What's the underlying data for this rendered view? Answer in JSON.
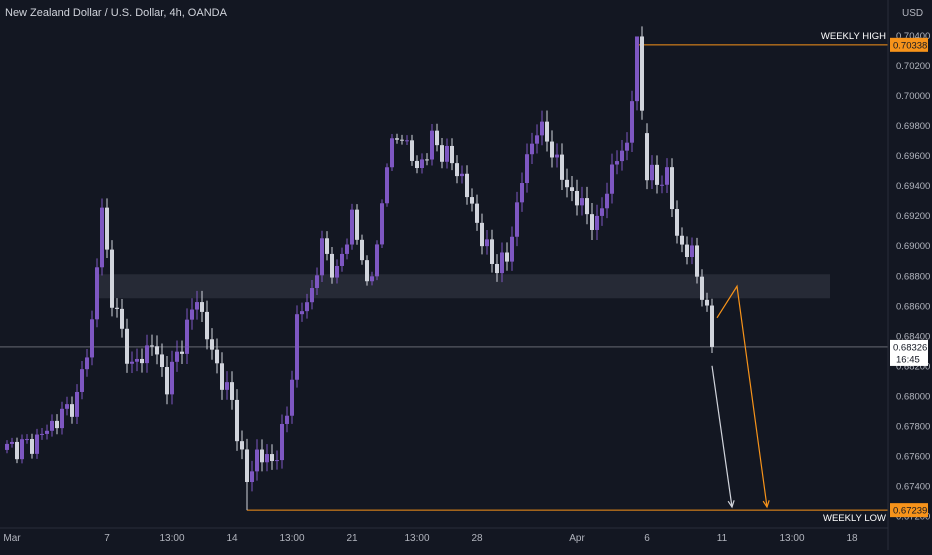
{
  "header": {
    "title": "New Zealand Dollar / U.S. Dollar, 4h, OANDA"
  },
  "colors": {
    "background": "#131722",
    "bull": "#7e57c2",
    "bear": "#d1d4dc",
    "level": "#f7931a",
    "zone": "#2a2e39",
    "text": "#b2b5be"
  },
  "chart_data": {
    "type": "candlestick",
    "title": "New Zealand Dollar / U.S. Dollar, 4h, OANDA",
    "currency_label": "USD",
    "ylim": [
      0.6712,
      0.7049
    ],
    "y_ticks": [
      "0.67200",
      "0.67400",
      "0.67600",
      "0.67800",
      "0.68000",
      "0.68200",
      "0.68400",
      "0.68600",
      "0.68800",
      "0.69000",
      "0.69200",
      "0.69400",
      "0.69600",
      "0.69800",
      "0.70000",
      "0.70200",
      "0.70400"
    ],
    "x_ticks": [
      "Mar",
      "7",
      "13:00",
      "14",
      "13:00",
      "21",
      "13:00",
      "28",
      "Apr",
      "6",
      "11",
      "13:00",
      "18"
    ],
    "candle_count": 142,
    "weekly_high": {
      "label": "WEEKLY HIGH",
      "value": 0.70338,
      "value_label": "0.70338",
      "start_index": 124
    },
    "weekly_low": {
      "label": "WEEKLY LOW",
      "value": 0.67239,
      "value_label": "0.67239",
      "start_index": 48
    },
    "last_price": {
      "value": 0.68326,
      "value_label": "0.68326",
      "countdown": "16:45"
    },
    "zone": {
      "low": 0.6865,
      "high": 0.6881,
      "start_index": 18
    },
    "projection_paths": [
      {
        "color": "#f7931a",
        "points": [
          [
            142,
            0.6852
          ],
          [
            146,
            0.6873
          ],
          [
            152,
            0.6726
          ]
        ]
      },
      {
        "color": "#d1d4dc",
        "points": [
          [
            141,
            0.682
          ],
          [
            145,
            0.6726
          ]
        ]
      }
    ],
    "pivots": [
      [
        0,
        0.6765
      ],
      [
        5,
        0.6768
      ],
      [
        10,
        0.6784
      ],
      [
        14,
        0.6798
      ],
      [
        17,
        0.6848
      ],
      [
        19,
        0.6925
      ],
      [
        21,
        0.6865
      ],
      [
        25,
        0.6818
      ],
      [
        29,
        0.6835
      ],
      [
        32,
        0.6808
      ],
      [
        35,
        0.6836
      ],
      [
        38,
        0.6866
      ],
      [
        41,
        0.6828
      ],
      [
        45,
        0.6795
      ],
      [
        48,
        0.6742
      ],
      [
        50,
        0.6762
      ],
      [
        53,
        0.6755
      ],
      [
        56,
        0.6785
      ],
      [
        58,
        0.685
      ],
      [
        61,
        0.687
      ],
      [
        63,
        0.69
      ],
      [
        66,
        0.688
      ],
      [
        69,
        0.692
      ],
      [
        72,
        0.6875
      ],
      [
        74,
        0.6895
      ],
      [
        76,
        0.696
      ],
      [
        79,
        0.6975
      ],
      [
        82,
        0.695
      ],
      [
        85,
        0.697
      ],
      [
        88,
        0.696
      ],
      [
        91,
        0.6945
      ],
      [
        94,
        0.6915
      ],
      [
        97,
        0.6888
      ],
      [
        100,
        0.689
      ],
      [
        103,
        0.6945
      ],
      [
        106,
        0.698
      ],
      [
        109,
        0.6965
      ],
      [
        111,
        0.6945
      ],
      [
        113,
        0.6935
      ],
      [
        116,
        0.6922
      ],
      [
        118,
        0.6912
      ],
      [
        120,
        0.694
      ],
      [
        122,
        0.6958
      ],
      [
        124,
        0.6968
      ],
      [
        126,
        0.7033
      ],
      [
        128,
        0.695
      ],
      [
        130,
        0.6942
      ],
      [
        132,
        0.6948
      ],
      [
        134,
        0.6905
      ],
      [
        137,
        0.6893
      ],
      [
        139,
        0.687
      ],
      [
        141,
        0.6835
      ],
      [
        142,
        0.6832
      ]
    ]
  }
}
